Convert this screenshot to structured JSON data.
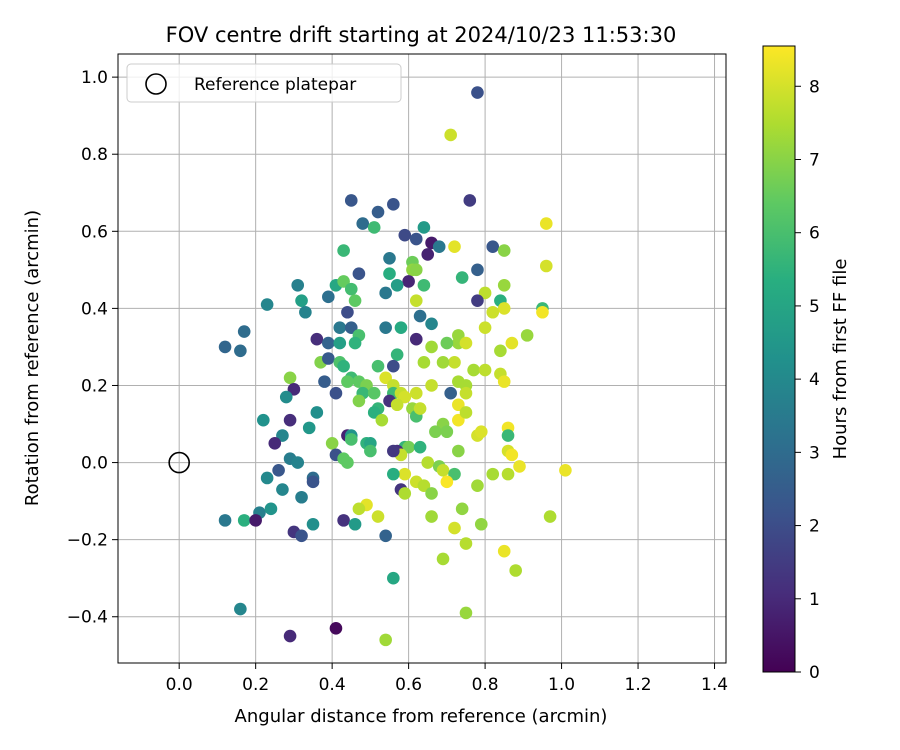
{
  "chart_data": {
    "type": "scatter",
    "title": "FOV centre drift starting at 2024/10/23 11:53:30",
    "xlabel": "Angular distance from reference (arcmin)",
    "ylabel": "Rotation from reference (arcmin)",
    "xlim": [
      -0.16,
      1.43
    ],
    "ylim": [
      -0.52,
      1.06
    ],
    "xticks": [
      0.0,
      0.2,
      0.4,
      0.6,
      0.8,
      1.0,
      1.2,
      1.4
    ],
    "xtick_labels": [
      "0.0",
      "0.2",
      "0.4",
      "0.6",
      "0.8",
      "1.0",
      "1.2",
      "1.4"
    ],
    "yticks": [
      -0.4,
      -0.2,
      0.0,
      0.2,
      0.4,
      0.6,
      0.8,
      1.0
    ],
    "ytick_labels": [
      "−0.4",
      "−0.2",
      "0.0",
      "0.2",
      "0.4",
      "0.6",
      "0.8",
      "1.0"
    ],
    "grid": true,
    "legend": {
      "position": "top-left",
      "entries": [
        "Reference platepar"
      ]
    },
    "reference_point": {
      "x": 0.0,
      "y": 0.0
    },
    "colorbar": {
      "label": "Hours from first FF file",
      "min": 0,
      "max": 8.55,
      "ticks": [
        0,
        1,
        2,
        3,
        4,
        5,
        6,
        7,
        8
      ],
      "tick_labels": [
        "0",
        "1",
        "2",
        "3",
        "4",
        "5",
        "6",
        "7",
        "8"
      ],
      "colormap": "viridis"
    },
    "points": [
      [
        0.78,
        0.96,
        2.1
      ],
      [
        0.71,
        0.85,
        7.9
      ],
      [
        0.45,
        0.68,
        2.3
      ],
      [
        0.56,
        0.67,
        2.2
      ],
      [
        0.76,
        0.68,
        1.5
      ],
      [
        0.52,
        0.65,
        2.5
      ],
      [
        0.48,
        0.62,
        3.0
      ],
      [
        0.51,
        0.61,
        5.8
      ],
      [
        0.64,
        0.61,
        4.6
      ],
      [
        0.96,
        0.62,
        8.3
      ],
      [
        0.59,
        0.59,
        1.9
      ],
      [
        0.62,
        0.58,
        2.2
      ],
      [
        0.66,
        0.57,
        0.6
      ],
      [
        0.68,
        0.56,
        3.4
      ],
      [
        0.72,
        0.56,
        8.2
      ],
      [
        0.82,
        0.56,
        2.3
      ],
      [
        0.43,
        0.55,
        5.7
      ],
      [
        0.85,
        0.55,
        7.0
      ],
      [
        0.65,
        0.54,
        0.8
      ],
      [
        0.55,
        0.53,
        3.4
      ],
      [
        0.61,
        0.52,
        6.6
      ],
      [
        0.78,
        0.5,
        2.6
      ],
      [
        0.96,
        0.51,
        8.0
      ],
      [
        0.61,
        0.5,
        7.1
      ],
      [
        0.62,
        0.5,
        7.0
      ],
      [
        0.74,
        0.48,
        5.6
      ],
      [
        0.55,
        0.49,
        5.3
      ],
      [
        0.47,
        0.49,
        2.2
      ],
      [
        0.6,
        0.47,
        0.9
      ],
      [
        0.57,
        0.46,
        4.7
      ],
      [
        0.85,
        0.46,
        7.2
      ],
      [
        0.41,
        0.46,
        5.1
      ],
      [
        0.43,
        0.47,
        6.5
      ],
      [
        0.31,
        0.46,
        3.7
      ],
      [
        0.45,
        0.45,
        5.9
      ],
      [
        0.54,
        0.44,
        3.4
      ],
      [
        0.64,
        0.46,
        5.8
      ],
      [
        0.8,
        0.44,
        7.7
      ],
      [
        0.46,
        0.42,
        6.4
      ],
      [
        0.32,
        0.42,
        4.8
      ],
      [
        0.39,
        0.43,
        3.1
      ],
      [
        0.62,
        0.42,
        7.8
      ],
      [
        0.84,
        0.42,
        5.4
      ],
      [
        0.95,
        0.4,
        5.7
      ],
      [
        0.23,
        0.41,
        3.9
      ],
      [
        0.78,
        0.42,
        1.5
      ],
      [
        0.85,
        0.4,
        8.1
      ],
      [
        0.33,
        0.39,
        3.8
      ],
      [
        0.82,
        0.39,
        7.9
      ],
      [
        0.95,
        0.39,
        8.4
      ],
      [
        0.44,
        0.39,
        2.0
      ],
      [
        0.63,
        0.38,
        3.1
      ],
      [
        0.66,
        0.36,
        3.9
      ],
      [
        0.58,
        0.35,
        5.2
      ],
      [
        0.8,
        0.35,
        7.9
      ],
      [
        0.17,
        0.34,
        3.0
      ],
      [
        0.42,
        0.35,
        3.4
      ],
      [
        0.45,
        0.35,
        2.6
      ],
      [
        0.54,
        0.35,
        3.4
      ],
      [
        0.47,
        0.33,
        6.0
      ],
      [
        0.73,
        0.33,
        7.2
      ],
      [
        0.91,
        0.33,
        7.2
      ],
      [
        0.12,
        0.3,
        2.8
      ],
      [
        0.36,
        0.32,
        1.1
      ],
      [
        0.39,
        0.31,
        2.7
      ],
      [
        0.62,
        0.32,
        1.0
      ],
      [
        0.73,
        0.31,
        7.2
      ],
      [
        0.75,
        0.31,
        8.0
      ],
      [
        0.66,
        0.3,
        7.3
      ],
      [
        0.7,
        0.31,
        6.6
      ],
      [
        0.42,
        0.31,
        4.8
      ],
      [
        0.46,
        0.31,
        5.5
      ],
      [
        0.87,
        0.31,
        8.2
      ],
      [
        0.16,
        0.29,
        3.0
      ],
      [
        0.57,
        0.28,
        5.6
      ],
      [
        0.84,
        0.29,
        7.4
      ],
      [
        0.72,
        0.26,
        7.8
      ],
      [
        0.37,
        0.26,
        6.9
      ],
      [
        0.39,
        0.27,
        2.4
      ],
      [
        0.42,
        0.26,
        6.1
      ],
      [
        0.43,
        0.25,
        5.5
      ],
      [
        0.64,
        0.26,
        7.4
      ],
      [
        0.69,
        0.26,
        7.3
      ],
      [
        0.56,
        0.25,
        2.0
      ],
      [
        0.52,
        0.25,
        6.0
      ],
      [
        0.77,
        0.24,
        7.4
      ],
      [
        0.8,
        0.24,
        7.7
      ],
      [
        0.84,
        0.23,
        7.8
      ],
      [
        0.45,
        0.22,
        5.8
      ],
      [
        0.29,
        0.22,
        7.0
      ],
      [
        0.54,
        0.22,
        8.1
      ],
      [
        0.38,
        0.21,
        2.5
      ],
      [
        0.47,
        0.21,
        6.4
      ],
      [
        0.44,
        0.21,
        6.4
      ],
      [
        0.73,
        0.21,
        7.4
      ],
      [
        0.85,
        0.21,
        8.3
      ],
      [
        0.75,
        0.2,
        7.4
      ],
      [
        0.66,
        0.2,
        7.8
      ],
      [
        0.49,
        0.2,
        6.8
      ],
      [
        0.56,
        0.2,
        7.8
      ],
      [
        0.3,
        0.19,
        1.0
      ],
      [
        0.41,
        0.18,
        2.1
      ],
      [
        0.48,
        0.18,
        5.7
      ],
      [
        0.56,
        0.18,
        5.8
      ],
      [
        0.58,
        0.18,
        7.8
      ],
      [
        0.71,
        0.18,
        2.6
      ],
      [
        0.75,
        0.18,
        7.8
      ],
      [
        0.51,
        0.18,
        6.3
      ],
      [
        0.28,
        0.17,
        4.1
      ],
      [
        0.62,
        0.18,
        7.9
      ],
      [
        0.59,
        0.17,
        8.0
      ],
      [
        0.47,
        0.16,
        6.9
      ],
      [
        0.55,
        0.16,
        1.2
      ],
      [
        0.57,
        0.15,
        7.8
      ],
      [
        0.73,
        0.15,
        8.3
      ],
      [
        0.52,
        0.14,
        5.6
      ],
      [
        0.51,
        0.13,
        5.4
      ],
      [
        0.61,
        0.14,
        7.2
      ],
      [
        0.36,
        0.13,
        4.2
      ],
      [
        0.22,
        0.11,
        4.3
      ],
      [
        0.29,
        0.11,
        1.1
      ],
      [
        0.53,
        0.11,
        7.4
      ],
      [
        0.62,
        0.12,
        6.0
      ],
      [
        0.73,
        0.11,
        8.4
      ],
      [
        0.75,
        0.13,
        7.7
      ],
      [
        0.63,
        0.14,
        7.8
      ],
      [
        0.69,
        0.1,
        7.0
      ],
      [
        0.86,
        0.09,
        8.4
      ],
      [
        0.34,
        0.09,
        4.5
      ],
      [
        0.67,
        0.08,
        6.8
      ],
      [
        0.7,
        0.08,
        6.8
      ],
      [
        0.27,
        0.07,
        3.9
      ],
      [
        0.44,
        0.07,
        0.8
      ],
      [
        0.45,
        0.07,
        4.4
      ],
      [
        0.45,
        0.06,
        6.0
      ],
      [
        0.4,
        0.05,
        7.0
      ],
      [
        0.49,
        0.05,
        5.5
      ],
      [
        0.5,
        0.05,
        5.0
      ],
      [
        0.78,
        0.07,
        8.0
      ],
      [
        0.79,
        0.08,
        8.1
      ],
      [
        0.86,
        0.07,
        5.7
      ],
      [
        0.25,
        0.05,
        1.0
      ],
      [
        0.59,
        0.04,
        5.6
      ],
      [
        0.6,
        0.04,
        6.7
      ],
      [
        0.63,
        0.04,
        5.5
      ],
      [
        0.57,
        0.03,
        1.1
      ],
      [
        0.58,
        0.02,
        7.8
      ],
      [
        0.5,
        0.03,
        6.0
      ],
      [
        0.73,
        0.03,
        7.0
      ],
      [
        0.41,
        0.02,
        2.1
      ],
      [
        0.86,
        0.03,
        8.0
      ],
      [
        0.87,
        0.02,
        8.4
      ],
      [
        0.56,
        0.03,
        1.4
      ],
      [
        0.29,
        0.01,
        3.6
      ],
      [
        0.31,
        0.0,
        3.8
      ],
      [
        0.43,
        0.01,
        6.4
      ],
      [
        0.44,
        -0.0,
        6.4
      ],
      [
        0.89,
        -0.01,
        8.3
      ],
      [
        0.65,
        -0.0,
        7.6
      ],
      [
        0.68,
        -0.01,
        6.8
      ],
      [
        0.69,
        -0.02,
        7.8
      ],
      [
        0.26,
        -0.02,
        2.3
      ],
      [
        0.23,
        -0.04,
        4.0
      ],
      [
        0.59,
        -0.03,
        8.1
      ],
      [
        0.72,
        -0.03,
        6.0
      ],
      [
        0.56,
        -0.03,
        5.3
      ],
      [
        0.82,
        -0.03,
        7.4
      ],
      [
        0.86,
        -0.03,
        7.6
      ],
      [
        1.01,
        -0.02,
        8.3
      ],
      [
        0.35,
        -0.04,
        3.0
      ],
      [
        0.35,
        -0.05,
        2.2
      ],
      [
        0.62,
        -0.05,
        7.9
      ],
      [
        0.7,
        -0.05,
        8.5
      ],
      [
        0.78,
        -0.06,
        7.3
      ],
      [
        0.64,
        -0.06,
        7.6
      ],
      [
        0.27,
        -0.07,
        3.9
      ],
      [
        0.58,
        -0.07,
        1.3
      ],
      [
        0.59,
        -0.08,
        7.5
      ],
      [
        0.66,
        -0.08,
        7.0
      ],
      [
        0.32,
        -0.09,
        3.6
      ],
      [
        0.49,
        -0.11,
        8.2
      ],
      [
        0.47,
        -0.12,
        7.7
      ],
      [
        0.74,
        -0.12,
        7.1
      ],
      [
        0.21,
        -0.13,
        3.7
      ],
      [
        0.24,
        -0.12,
        4.4
      ],
      [
        0.52,
        -0.14,
        7.9
      ],
      [
        0.66,
        -0.14,
        7.3
      ],
      [
        0.97,
        -0.14,
        7.5
      ],
      [
        0.43,
        -0.15,
        1.2
      ],
      [
        0.12,
        -0.15,
        3.4
      ],
      [
        0.17,
        -0.15,
        5.4
      ],
      [
        0.2,
        -0.15,
        0.6
      ],
      [
        0.35,
        -0.16,
        4.2
      ],
      [
        0.46,
        -0.16,
        4.6
      ],
      [
        0.72,
        -0.17,
        8.0
      ],
      [
        0.79,
        -0.16,
        7.1
      ],
      [
        0.3,
        -0.18,
        1.3
      ],
      [
        0.32,
        -0.19,
        2.2
      ],
      [
        0.54,
        -0.19,
        2.7
      ],
      [
        0.75,
        -0.21,
        7.6
      ],
      [
        0.85,
        -0.23,
        8.3
      ],
      [
        0.69,
        -0.25,
        7.4
      ],
      [
        0.88,
        -0.28,
        7.5
      ],
      [
        0.56,
        -0.3,
        5.1
      ],
      [
        0.16,
        -0.38,
        3.9
      ],
      [
        0.75,
        -0.39,
        7.2
      ],
      [
        0.41,
        -0.43,
        0.2
      ],
      [
        0.29,
        -0.45,
        1.0
      ],
      [
        0.54,
        -0.46,
        7.3
      ]
    ]
  }
}
